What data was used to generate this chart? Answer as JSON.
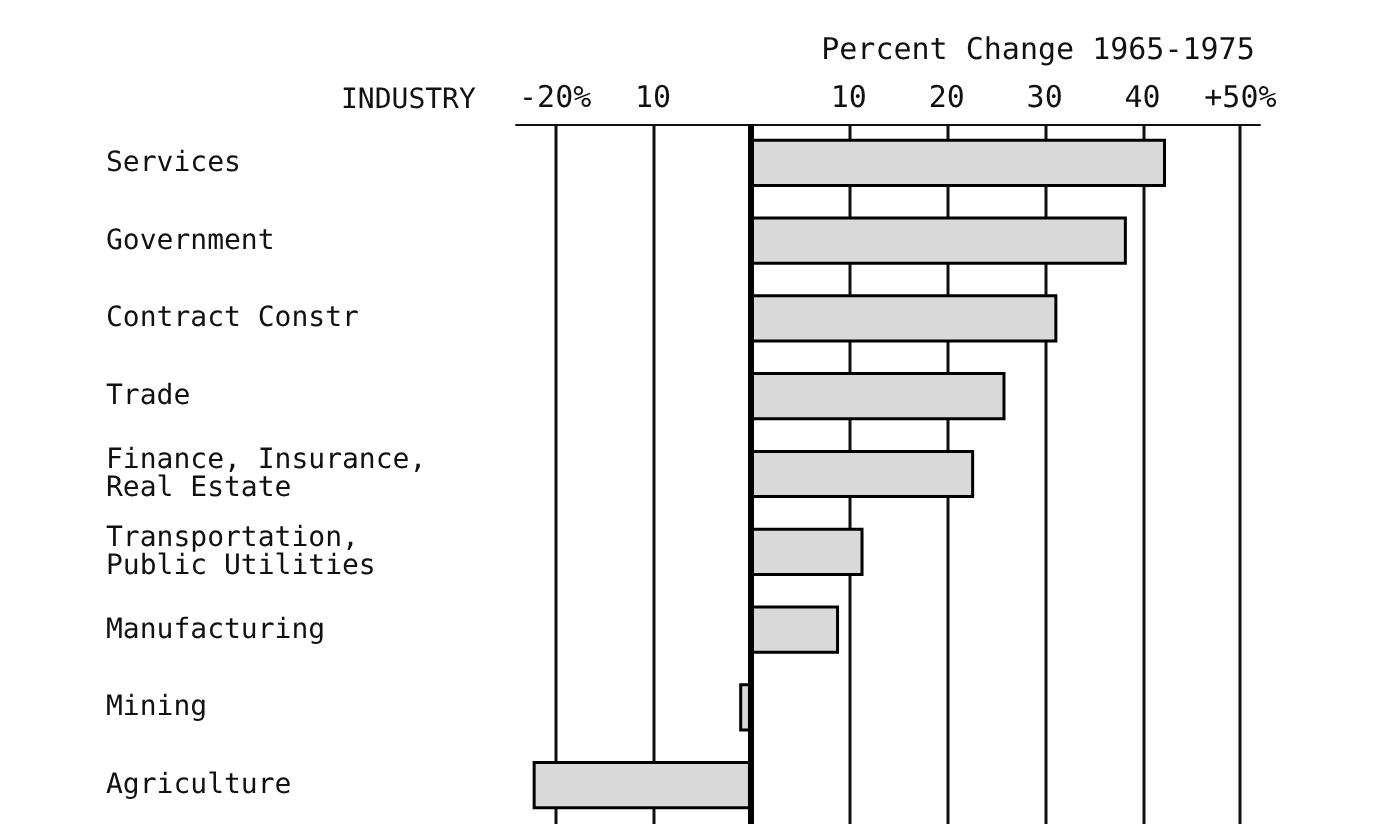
{
  "chart_data": {
    "type": "bar",
    "orientation": "horizontal",
    "xlabel": "Percent Change 1965-1975",
    "ylabel": "INDUSTRY",
    "categories": [
      "Services",
      "Government",
      "Contract Constr",
      "Trade",
      "Finance, Insurance,\nReal Estate",
      "Transportation,\nPublic Utilities",
      "Manufacturing",
      "Mining",
      "Agriculture"
    ],
    "series": [
      {
        "color": "#d9d9d9",
        "values": [
          42.4,
          38.4,
          31.3,
          26.0,
          22.8,
          11.5,
          9.0,
          -1.2,
          -22.3
        ]
      }
    ],
    "xlim": [
      -24,
      52
    ],
    "xticks": [
      {
        "value": -20,
        "label": "-20%"
      },
      {
        "value": -10,
        "label": "10"
      },
      10,
      20,
      30,
      40,
      {
        "value": 50,
        "label": "+50%"
      }
    ],
    "ref_lines": [
      {
        "axis": "x",
        "value": 0,
        "label": null,
        "color": "#000000"
      }
    ],
    "grid": "x"
  }
}
